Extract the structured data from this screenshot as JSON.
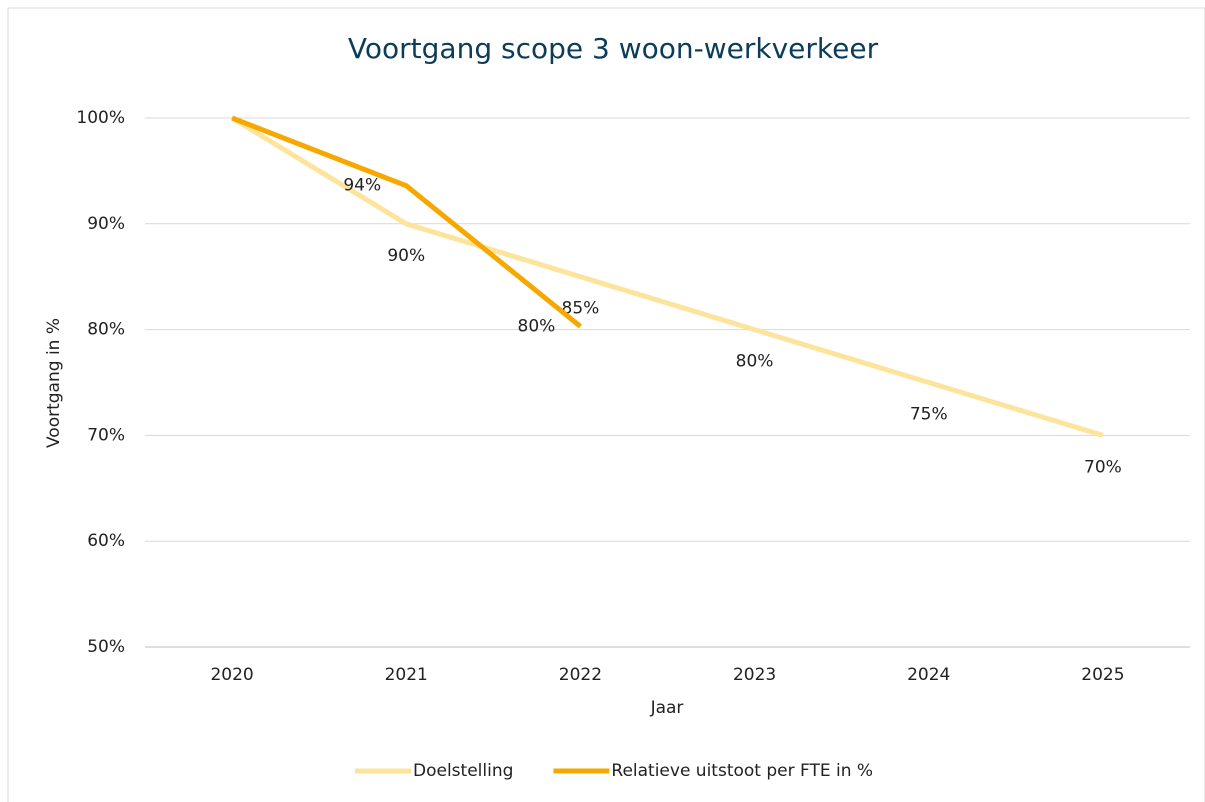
{
  "chart_data": {
    "type": "line",
    "title": "Voortgang scope 3 woon-werkverkeer",
    "x_label": "Jaar",
    "y_label": "Voortgang in %",
    "categories": [
      "2020",
      "2021",
      "2022",
      "2023",
      "2024",
      "2025"
    ],
    "series": [
      {
        "name": "Doelstelling",
        "color": "#fde49c",
        "values": [
          100,
          90,
          85,
          80,
          75,
          70
        ],
        "value_labels": [
          null,
          "90%",
          "85%",
          "80%",
          "75%",
          "70%"
        ]
      },
      {
        "name": "Relatieve uitstoot per FTE in %",
        "color": "#f7a800",
        "values": [
          100,
          93.6,
          80.3,
          null,
          null,
          null
        ],
        "value_labels": [
          null,
          "94%",
          "80%",
          null,
          null,
          null
        ]
      }
    ],
    "ylim": [
      50,
      100
    ],
    "yticks": [
      {
        "value": 50,
        "label": "50%"
      },
      {
        "value": 60,
        "label": "60%"
      },
      {
        "value": 70,
        "label": "70%"
      },
      {
        "value": 80,
        "label": "80%"
      },
      {
        "value": 90,
        "label": "90%"
      },
      {
        "value": 100,
        "label": "100%"
      }
    ],
    "grid": true,
    "legend": "bottom"
  }
}
